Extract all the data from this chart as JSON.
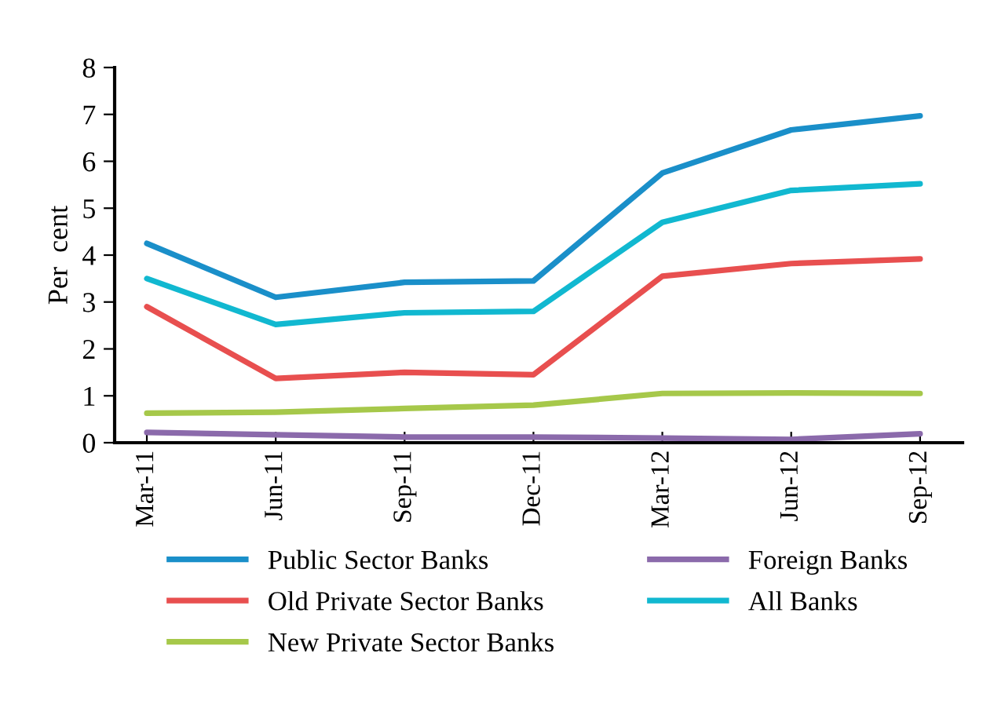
{
  "chart_data": {
    "type": "line",
    "ylabel": "Per  cent",
    "categories": [
      "Mar-11",
      "Jun-11",
      "Sep-11",
      "Dec-11",
      "Mar-12",
      "Jun-12",
      "Sep-12"
    ],
    "series": [
      {
        "name": "Public Sector Banks",
        "color": "#1a8fc9",
        "values": [
          4.25,
          3.1,
          3.42,
          3.45,
          5.75,
          6.67,
          6.97
        ]
      },
      {
        "name": "Old Private Sector Banks",
        "color": "#e84f4f",
        "values": [
          2.9,
          1.37,
          1.5,
          1.45,
          3.55,
          3.82,
          3.92
        ]
      },
      {
        "name": "New Private Sector Banks",
        "color": "#a6c84a",
        "values": [
          0.63,
          0.65,
          0.73,
          0.8,
          1.05,
          1.06,
          1.05
        ]
      },
      {
        "name": "Foreign Banks",
        "color": "#8b6aab",
        "values": [
          0.22,
          0.17,
          0.12,
          0.12,
          0.1,
          0.07,
          0.19
        ]
      },
      {
        "name": "All Banks",
        "color": "#11b8d0",
        "values": [
          3.5,
          2.52,
          2.77,
          2.8,
          4.7,
          5.38,
          5.52
        ]
      }
    ],
    "ylim": [
      0,
      8
    ],
    "yticks": [
      0,
      1,
      2,
      3,
      4,
      5,
      6,
      7,
      8
    ],
    "grid": false,
    "legend": "bottom",
    "marker": "none",
    "line_style": "solid"
  }
}
